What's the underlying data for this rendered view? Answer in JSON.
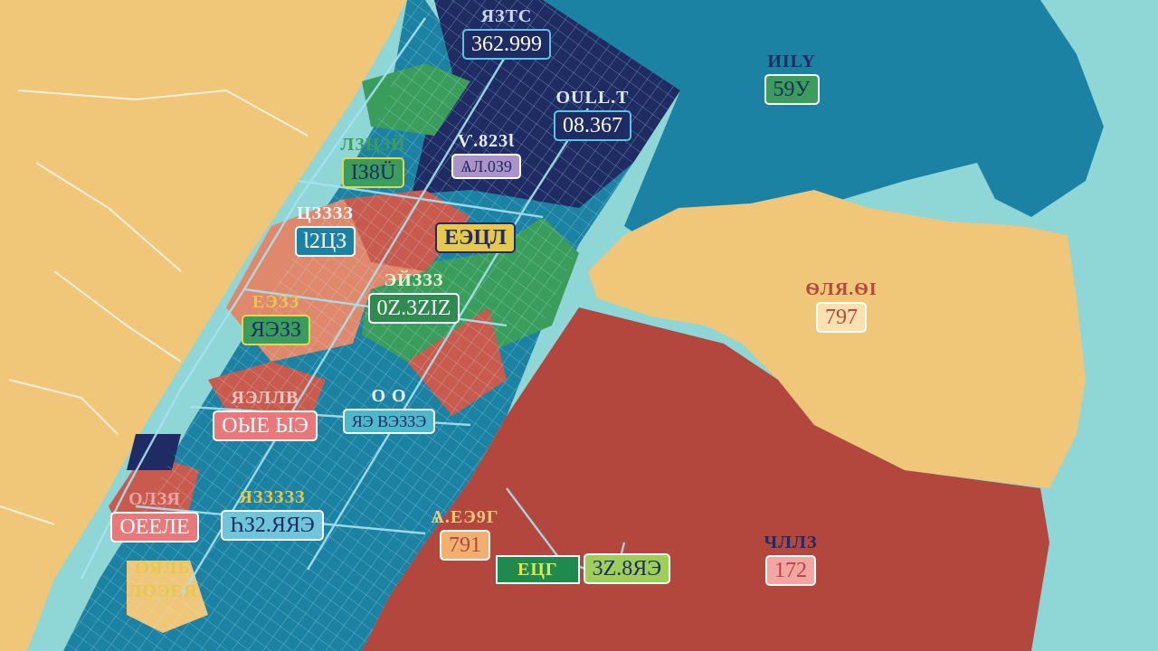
{
  "labels": [
    {
      "id": "top-navy",
      "title": "ЯЗТС",
      "value": "362.999"
    },
    {
      "id": "navy-right",
      "title": "OULL.T",
      "value": "08.367"
    },
    {
      "id": "ne-teal",
      "title": "ИILY",
      "value": "59У"
    },
    {
      "id": "upper-mid",
      "title": "Ѵ.823Ɩ",
      "value": "ѦЛ.0З9"
    },
    {
      "id": "upper-left",
      "title": "ЛЗЦЗЙ",
      "value": "ІЗ8Ü"
    },
    {
      "id": "mid-small",
      "title": "ЦЗЗЗЗ",
      "value": "Ɩ2ЦЗ"
    },
    {
      "id": "mid-yellow",
      "title": "",
      "value": "ЕЭЦЛ"
    },
    {
      "id": "center-green",
      "title": "ЭЙЗЗЗ",
      "value": "0Z.3ZIZ"
    },
    {
      "id": "left-mid",
      "title": "ЕЭЗЗ",
      "value": "ЯЭЗЗ"
    },
    {
      "id": "east-tan",
      "title": "ѲЛЯ.ѲІ",
      "value": "797"
    },
    {
      "id": "left-red",
      "title": "ЯЭЛЛВ",
      "value": "ОЫЕ ЫЭ"
    },
    {
      "id": "center-cyan",
      "title": "О  О",
      "value": "ЯЭ ВЭЗЗЭ"
    },
    {
      "id": "sw-red",
      "title": "ОЛЗЯ",
      "value": "ОЕЕЛЕ"
    },
    {
      "id": "sw-cyan",
      "title": "ЯЗЗЗЗЗ",
      "value": "ҺЗ2.ЯЯЭ"
    },
    {
      "id": "se-orange",
      "title": "Ѧ.ЕЭ9Г",
      "value": "791"
    },
    {
      "id": "se-green",
      "title": "ЕЦГ",
      "value": "3Z.8ЯЭ"
    },
    {
      "id": "se-red",
      "title": "ЧЛЛЗ",
      "value": "172"
    },
    {
      "id": "sw-tan",
      "title": "ОЯЛБ",
      "value": "ЛОЭЕЯ"
    }
  ],
  "colors": {
    "water": "#8fd6d6",
    "land_tan": "#f0c678",
    "teal": "#1c82a3",
    "navy": "#1f2c63",
    "red": "#b4473d",
    "green": "#3a9d5c",
    "salmon": "#e0886b",
    "cyan": "#4fb7cc",
    "street": "#a6e3f0"
  }
}
